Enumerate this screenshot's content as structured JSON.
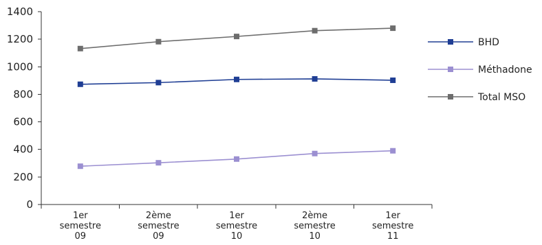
{
  "chart_data": {
    "type": "line",
    "title": "",
    "xlabel": "",
    "ylabel": "",
    "ylim": [
      0,
      1400
    ],
    "yticks": [
      0,
      200,
      400,
      600,
      800,
      1000,
      1200,
      1400
    ],
    "grid": false,
    "legend_position": "right",
    "categories": [
      [
        "1er",
        "semestre",
        "09"
      ],
      [
        "2ème",
        "semestre",
        "09"
      ],
      [
        "1er",
        "semestre",
        "10"
      ],
      [
        "2ème",
        "semestre",
        "10"
      ],
      [
        "1er",
        "semestre",
        "11"
      ]
    ],
    "series": [
      {
        "name": "BHD",
        "color": "#1f3e94",
        "marker": "square",
        "values": [
          873,
          885,
          908,
          912,
          902
        ]
      },
      {
        "name": "Méthadone",
        "color": "#9b8fd1",
        "marker": "square",
        "values": [
          278,
          303,
          330,
          370,
          390
        ]
      },
      {
        "name": "Total MSO",
        "color": "#6d6d6d",
        "marker": "square",
        "values": [
          1132,
          1182,
          1220,
          1262,
          1280
        ]
      }
    ]
  }
}
